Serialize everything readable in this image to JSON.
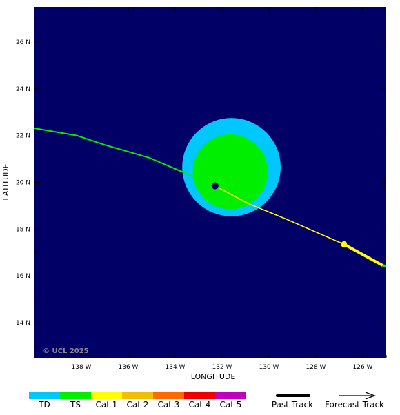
{
  "map": {
    "background_color": "#000066",
    "x_axis": {
      "title": "LONGITUDE",
      "range": [
        -140,
        -125
      ],
      "ticks": [
        {
          "value": -138,
          "label": "138 W"
        },
        {
          "value": -136,
          "label": "136 W"
        },
        {
          "value": -134,
          "label": "134 W"
        },
        {
          "value": -132,
          "label": "132 W"
        },
        {
          "value": -130,
          "label": "130 W"
        },
        {
          "value": -128,
          "label": "128 W"
        },
        {
          "value": -126,
          "label": "126 W"
        }
      ]
    },
    "y_axis": {
      "title": "LATITUDE",
      "range": [
        12.5,
        27.5
      ],
      "ticks": [
        {
          "value": 14,
          "label": "14 N"
        },
        {
          "value": 16,
          "label": "16 N"
        },
        {
          "value": 18,
          "label": "18 N"
        },
        {
          "value": 20,
          "label": "20 N"
        },
        {
          "value": 22,
          "label": "22 N"
        },
        {
          "value": 24,
          "label": "24 N"
        },
        {
          "value": 26,
          "label": "26 N"
        }
      ]
    },
    "copyright": "© UCL 2025"
  },
  "storm": {
    "center": {
      "lon": -132.3,
      "lat": 19.85,
      "color": "#000066"
    },
    "wind_fields": [
      {
        "name": "TD",
        "center_lon": -131.6,
        "center_lat": 20.65,
        "radius_deg": 2.1,
        "color": "#00c8ff"
      },
      {
        "name": "TS",
        "center_lon": -131.65,
        "center_lat": 20.45,
        "radius_deg": 1.6,
        "color": "#00ee00"
      }
    ],
    "past_track": {
      "color": "#00ee00",
      "points": [
        [
          -140.2,
          22.35
        ],
        [
          -138.2,
          22.0
        ],
        [
          -137.0,
          21.6
        ],
        [
          -135.1,
          21.05
        ],
        [
          -132.3,
          19.85
        ]
      ]
    },
    "forecast_track": {
      "color": "#ffff00",
      "points": [
        [
          -132.3,
          19.85
        ],
        [
          -130.9,
          19.1
        ],
        [
          -129.2,
          18.4
        ],
        [
          -126.8,
          17.35
        ]
      ]
    },
    "forecast_point": {
      "lon": -126.8,
      "lat": 17.35,
      "color": "#ffff00"
    },
    "tail_segments": [
      {
        "color": "#ffff00",
        "points": [
          [
            -126.8,
            17.35
          ],
          [
            -125.15,
            16.45
          ]
        ]
      },
      {
        "color": "#00ee00",
        "points": [
          [
            -125.15,
            16.45
          ],
          [
            -124.8,
            16.35
          ]
        ]
      }
    ]
  },
  "legend": {
    "categories": [
      {
        "label": "TD",
        "color": "#00c8ff"
      },
      {
        "label": "TS",
        "color": "#00ee00"
      },
      {
        "label": "Cat 1",
        "color": "#ffff00"
      },
      {
        "label": "Cat 2",
        "color": "#f0c000"
      },
      {
        "label": "Cat 3",
        "color": "#ff6a00"
      },
      {
        "label": "Cat 4",
        "color": "#ee0000"
      },
      {
        "label": "Cat 5",
        "color": "#c000c0"
      }
    ],
    "past_track_label": "Past Track",
    "forecast_track_label": "Forecast Track"
  }
}
